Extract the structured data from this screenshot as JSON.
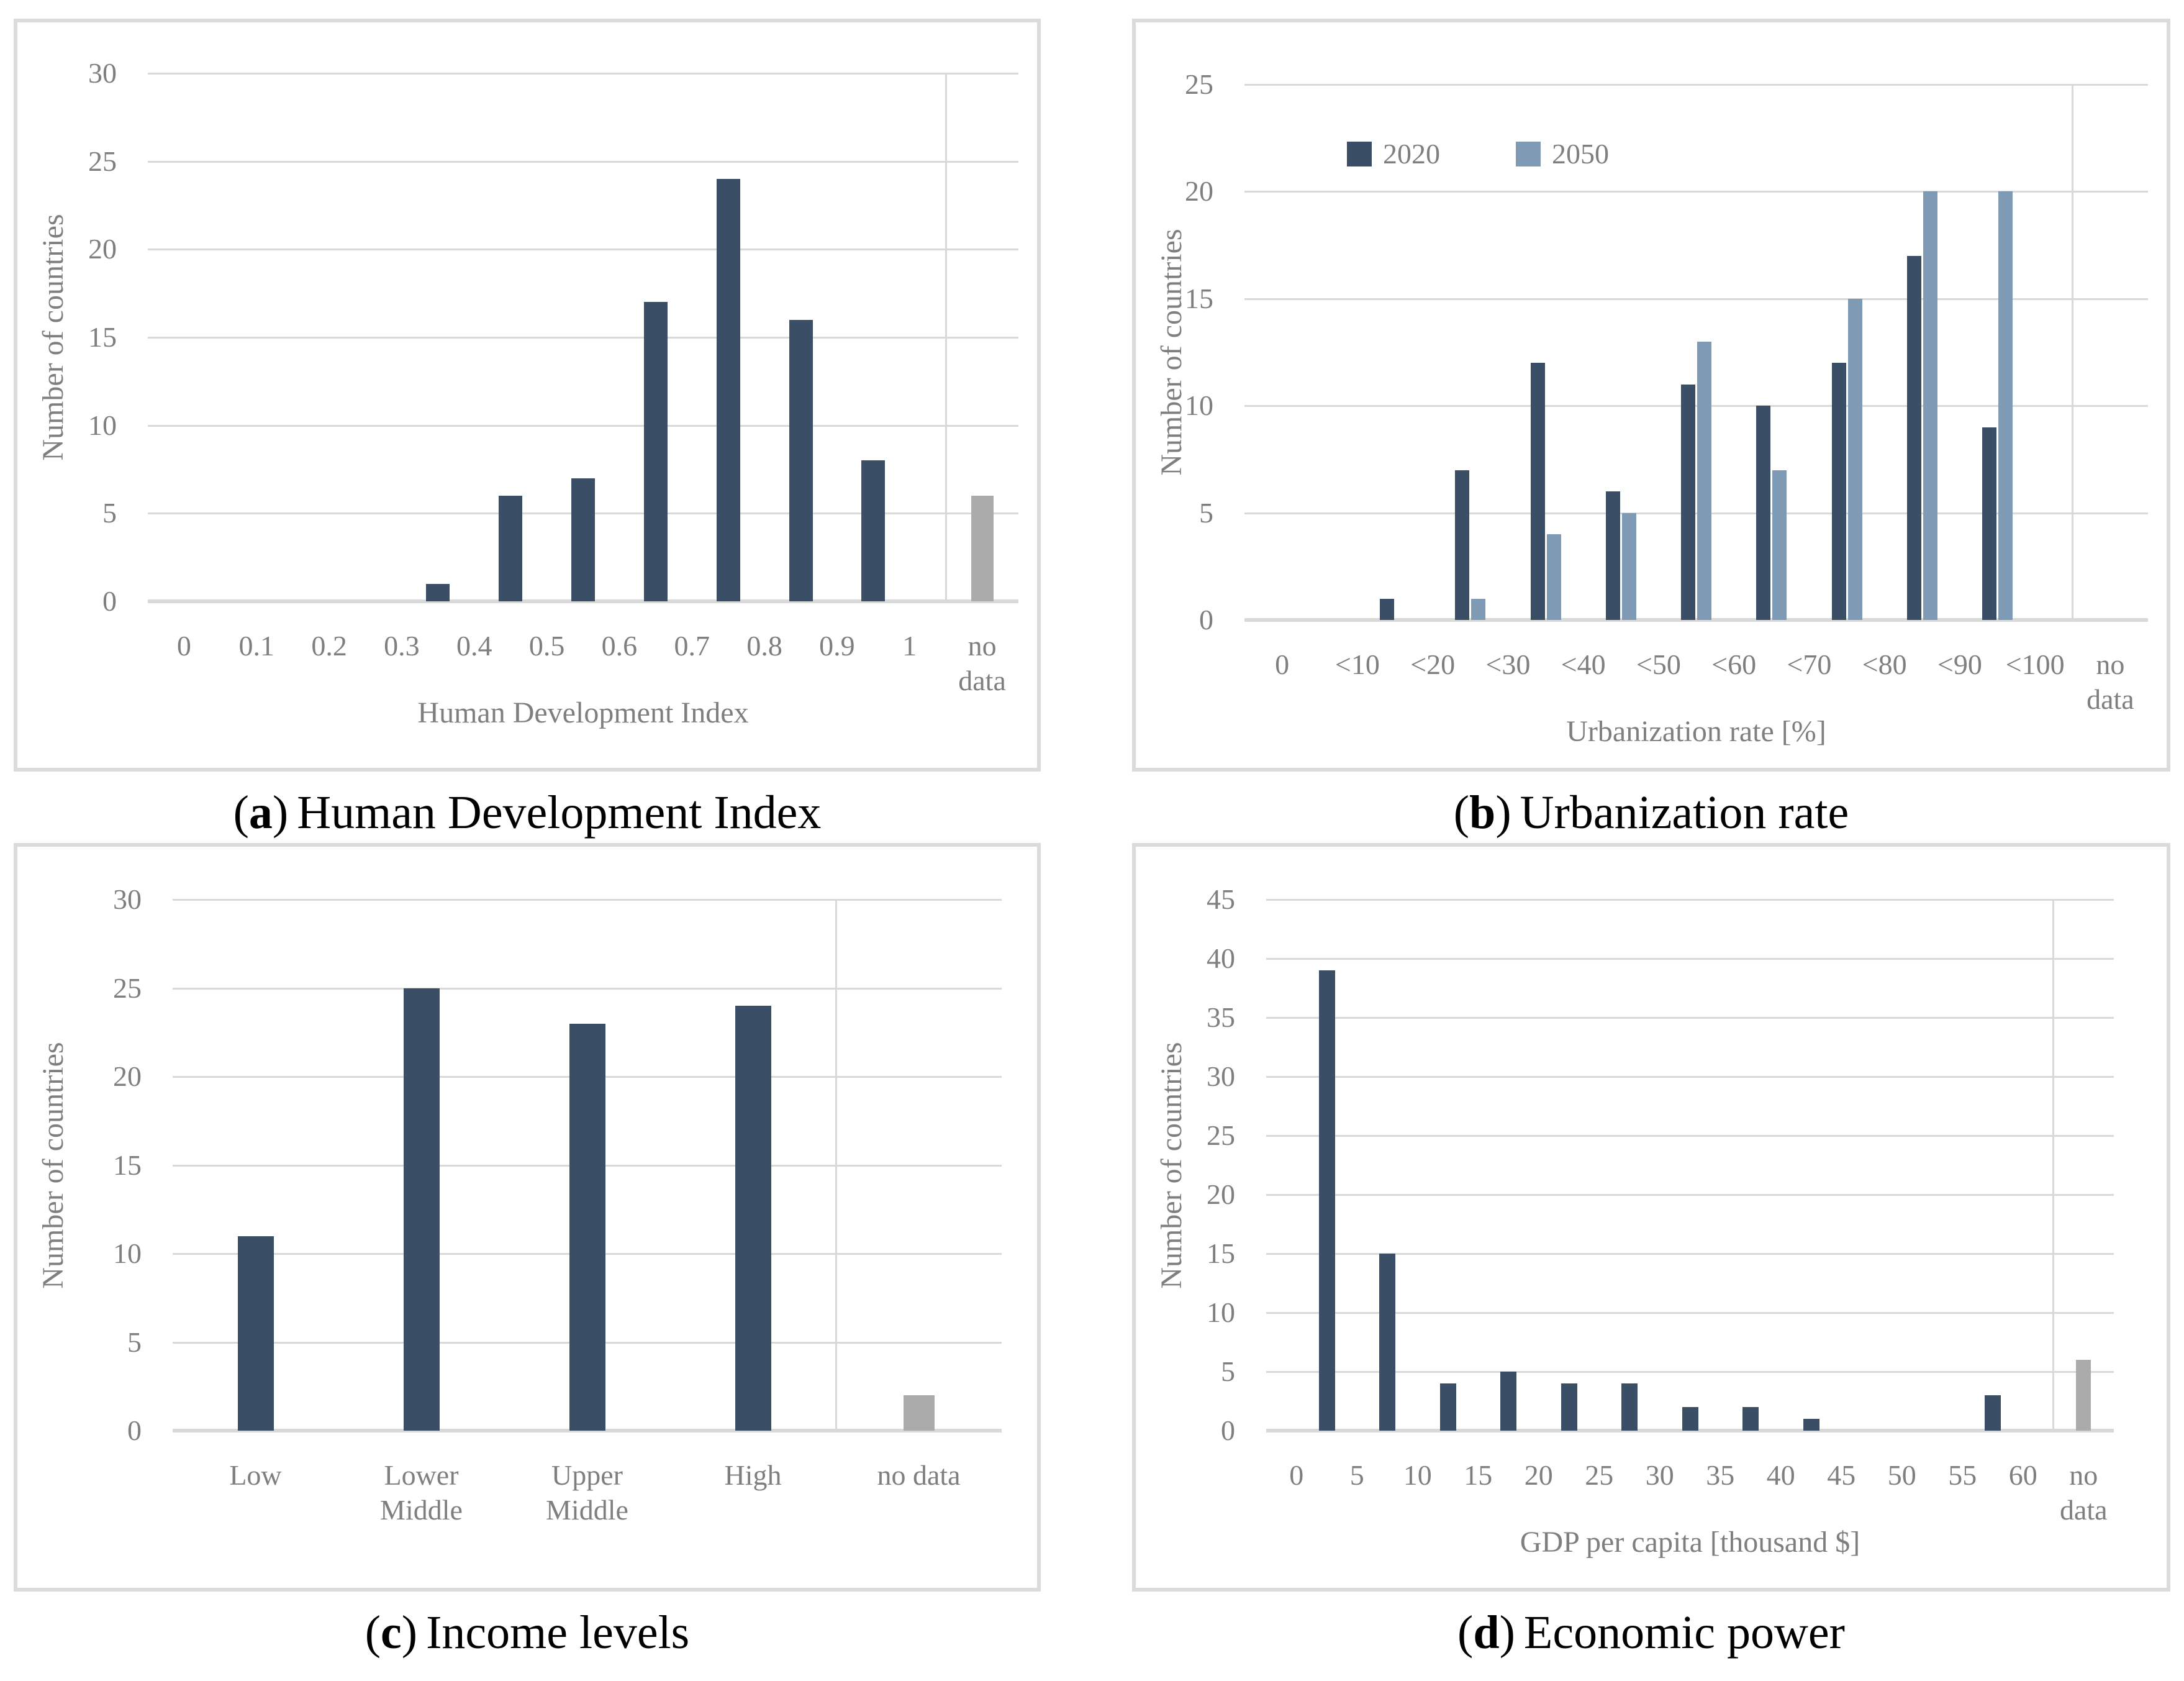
{
  "ui": {
    "open_paren": "(",
    "close_paren": ")"
  },
  "colors": {
    "bar_dark": "#3A4F66",
    "bar_light": "#7E9AB5",
    "bar_gray": "#ABABAB",
    "gridline": "#D9D9D9",
    "panel_border": "#DBDBDB",
    "axis_text": "#7F7F7F",
    "caption_text": "#000000",
    "background": "#FFFFFF"
  },
  "chart_data": [
    {
      "type": "bar",
      "caption": {
        "letter": "a",
        "title": "Human Development Index"
      },
      "y_axis": {
        "label": "Number of countries",
        "max": 30,
        "step": 5,
        "tick_labels": [
          "0",
          "5",
          "10",
          "15",
          "20",
          "25",
          "30"
        ]
      },
      "x_axis": {
        "label": "Human Development Index",
        "mode": "bin-edges",
        "labels": [
          "0",
          "0.1",
          "0.2",
          "0.3",
          "0.4",
          "0.5",
          "0.6",
          "0.7",
          "0.8",
          "0.9",
          "1",
          "no\ndata"
        ]
      },
      "series": [
        {
          "name": "countries",
          "color": "dark",
          "bars": [
            {
              "between": [
                "0.3",
                "0.4"
              ],
              "value": 1
            },
            {
              "between": [
                "0.4",
                "0.5"
              ],
              "value": 6
            },
            {
              "between": [
                "0.5",
                "0.6"
              ],
              "value": 7
            },
            {
              "between": [
                "0.6",
                "0.7"
              ],
              "value": 17
            },
            {
              "between": [
                "0.7",
                "0.8"
              ],
              "value": 24
            },
            {
              "between": [
                "0.8",
                "0.9"
              ],
              "value": 16
            },
            {
              "between": [
                "0.9",
                "1"
              ],
              "value": 8
            }
          ]
        }
      ],
      "no_data": {
        "label": "no data",
        "value": 6
      }
    },
    {
      "type": "bar",
      "caption": {
        "letter": "b",
        "title": "Urbanization rate"
      },
      "legend": [
        {
          "label": "2020",
          "color": "dark"
        },
        {
          "label": "2050",
          "color": "light"
        }
      ],
      "y_axis": {
        "label": "Number of countries",
        "max": 25,
        "step": 5,
        "tick_labels": [
          "0",
          "5",
          "10",
          "15",
          "20",
          "25"
        ]
      },
      "x_axis": {
        "label": "Urbanization rate [%]",
        "mode": "bin-edges",
        "labels": [
          "0",
          "<10",
          "<20",
          "<30",
          "<40",
          "<50",
          "<60",
          "<70",
          "<80",
          "<90",
          "<100",
          "no\ndata"
        ]
      },
      "series": [
        {
          "name": "2020",
          "color": "dark",
          "bars": [
            {
              "between": [
                "<10",
                "<20"
              ],
              "value": 1
            },
            {
              "between": [
                "<20",
                "<30"
              ],
              "value": 7
            },
            {
              "between": [
                "<30",
                "<40"
              ],
              "value": 12
            },
            {
              "between": [
                "<40",
                "<50"
              ],
              "value": 6
            },
            {
              "between": [
                "<50",
                "<60"
              ],
              "value": 11
            },
            {
              "between": [
                "<60",
                "<70"
              ],
              "value": 10
            },
            {
              "between": [
                "<70",
                "<80"
              ],
              "value": 12
            },
            {
              "between": [
                "<80",
                "<90"
              ],
              "value": 17
            },
            {
              "between": [
                "<90",
                "<100"
              ],
              "value": 9
            }
          ]
        },
        {
          "name": "2050",
          "color": "light",
          "bars": [
            {
              "between": [
                "<20",
                "<30"
              ],
              "value": 1
            },
            {
              "between": [
                "<30",
                "<40"
              ],
              "value": 4
            },
            {
              "between": [
                "<40",
                "<50"
              ],
              "value": 5
            },
            {
              "between": [
                "<50",
                "<60"
              ],
              "value": 13
            },
            {
              "between": [
                "<60",
                "<70"
              ],
              "value": 7
            },
            {
              "between": [
                "<70",
                "<80"
              ],
              "value": 15
            },
            {
              "between": [
                "<80",
                "<90"
              ],
              "value": 20
            },
            {
              "between": [
                "<90",
                "<100"
              ],
              "value": 20
            }
          ]
        }
      ],
      "no_data": null
    },
    {
      "type": "bar",
      "caption": {
        "letter": "c",
        "title": "Income levels"
      },
      "y_axis": {
        "label": "Number of countries",
        "max": 30,
        "step": 5,
        "tick_labels": [
          "0",
          "5",
          "10",
          "15",
          "20",
          "25",
          "30"
        ]
      },
      "x_axis": {
        "label": null,
        "mode": "categories",
        "labels": [
          "Low",
          "Lower\nMiddle",
          "Upper\nMiddle",
          "High",
          "no data"
        ]
      },
      "series": [
        {
          "name": "countries",
          "color": "dark",
          "bars": [
            {
              "at": "Low",
              "value": 11
            },
            {
              "at": "Lower\nMiddle",
              "value": 25
            },
            {
              "at": "Upper\nMiddle",
              "value": 23
            },
            {
              "at": "High",
              "value": 24
            }
          ]
        }
      ],
      "no_data": {
        "label": "no data",
        "value": 2
      }
    },
    {
      "type": "bar",
      "caption": {
        "letter": "d",
        "title": "Economic power"
      },
      "y_axis": {
        "label": "Number of countries",
        "max": 45,
        "step": 5,
        "tick_labels": [
          "0",
          "5",
          "10",
          "15",
          "20",
          "25",
          "30",
          "35",
          "40",
          "45"
        ]
      },
      "x_axis": {
        "label": "GDP per capita [thousand $]",
        "mode": "bin-edges",
        "labels": [
          "0",
          "5",
          "10",
          "15",
          "20",
          "25",
          "30",
          "35",
          "40",
          "45",
          "50",
          "55",
          "60",
          "no\ndata"
        ]
      },
      "series": [
        {
          "name": "countries",
          "color": "dark",
          "bars": [
            {
              "between": [
                "0",
                "5"
              ],
              "value": 39
            },
            {
              "between": [
                "5",
                "10"
              ],
              "value": 15
            },
            {
              "between": [
                "10",
                "15"
              ],
              "value": 4
            },
            {
              "between": [
                "15",
                "20"
              ],
              "value": 5
            },
            {
              "between": [
                "20",
                "25"
              ],
              "value": 4
            },
            {
              "between": [
                "25",
                "30"
              ],
              "value": 4
            },
            {
              "between": [
                "30",
                "35"
              ],
              "value": 2
            },
            {
              "between": [
                "35",
                "40"
              ],
              "value": 2
            },
            {
              "between": [
                "40",
                "45"
              ],
              "value": 1
            },
            {
              "between": [
                "55",
                "60"
              ],
              "value": 3
            }
          ]
        }
      ],
      "no_data": {
        "label": "no data",
        "value": 6
      }
    }
  ]
}
